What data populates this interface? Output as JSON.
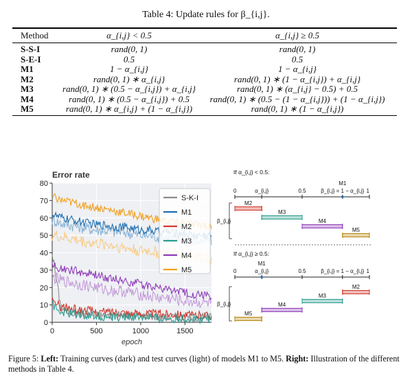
{
  "table": {
    "title": "Table 4: Update rules for β_{i,j}.",
    "headers": [
      "Method",
      "α_{i,j} < 0.5",
      "α_{i,j} ≥ 0.5"
    ],
    "rows": [
      {
        "method": "S-S-I",
        "lt": "rand(0, 1)",
        "ge": "rand(0, 1)"
      },
      {
        "method": "S-E-I",
        "lt": "0.5",
        "ge": "0.5"
      },
      {
        "method": "M1",
        "lt": "1 − α_{i,j}",
        "ge": "1 − α_{i,j}"
      },
      {
        "method": "M2",
        "lt": "rand(0, 1) ∗ α_{i,j}",
        "ge": "rand(0, 1) ∗ (1 − α_{i,j}) + α_{i,j}"
      },
      {
        "method": "M3",
        "lt": "rand(0, 1) ∗ (0.5 − α_{i,j}) + α_{i,j}",
        "ge": "rand(0, 1) ∗ (α_{i,j} − 0.5) + 0.5"
      },
      {
        "method": "M4",
        "lt": "rand(0, 1) ∗ (0.5 − α_{i,j}) + 0.5",
        "ge": "rand(0, 1) ∗ (0.5 − (1 − α_{i,j})) + (1 − α_{i,j})"
      },
      {
        "method": "M5",
        "lt": "rand(0, 1) ∗ α_{i,j} + (1 − α_{i,j})",
        "ge": "rand(0, 1) ∗ (1 − α_{i,j})"
      }
    ]
  },
  "chart_data": {
    "type": "line",
    "title": "Error rate",
    "xlabel": "epoch",
    "ylabel": "",
    "xlim": [
      0,
      1800
    ],
    "ylim": [
      0,
      80
    ],
    "xticks": [
      0,
      500,
      1000,
      1500
    ],
    "yticks": [
      0,
      10,
      20,
      30,
      40,
      50,
      60,
      70,
      80
    ],
    "legend_position": "top-right",
    "x": [
      0,
      100,
      200,
      300,
      400,
      500,
      600,
      700,
      800,
      900,
      1000,
      1100,
      1200,
      1300,
      1400,
      1500,
      1600,
      1700,
      1800
    ],
    "series": [
      {
        "name": "S-K-I",
        "color": "#8c8c8c",
        "values": [
          40,
          8,
          6,
          5,
          5,
          4,
          4,
          4,
          4,
          4,
          4,
          4,
          3,
          3,
          3,
          3,
          3,
          3,
          3
        ]
      },
      {
        "name": "M1",
        "color": "#1f6fb0",
        "values": [
          62,
          60,
          59,
          58,
          57,
          56,
          56,
          55,
          55,
          54,
          53,
          53,
          52,
          52,
          51,
          51,
          50,
          50,
          50
        ],
        "test_values": [
          59,
          57,
          56,
          55,
          54,
          53,
          53,
          52,
          52,
          51,
          50,
          50,
          49,
          49,
          48,
          48,
          47,
          47,
          47
        ]
      },
      {
        "name": "M2",
        "color": "#d1362a",
        "values": [
          12,
          9,
          8,
          7,
          7,
          6,
          6,
          6,
          6,
          5,
          5,
          5,
          5,
          5,
          5,
          4,
          4,
          4,
          4
        ]
      },
      {
        "name": "M3",
        "color": "#2a9d8f",
        "values": [
          10,
          6,
          5,
          5,
          4,
          4,
          3,
          3,
          3,
          3,
          3,
          3,
          2,
          2,
          2,
          2,
          2,
          2,
          2
        ]
      },
      {
        "name": "M4",
        "color": "#8e3ab8",
        "values": [
          33,
          31,
          30,
          29,
          28,
          27,
          26,
          25,
          24,
          23,
          22,
          21,
          20,
          19,
          18,
          17,
          16,
          16,
          15
        ],
        "test_values": [
          26,
          24,
          23,
          22,
          21,
          20,
          19,
          18,
          18,
          17,
          16,
          15,
          14,
          14,
          13,
          12,
          12,
          11,
          11
        ]
      },
      {
        "name": "M5",
        "color": "#f29e1c",
        "values": [
          72,
          70,
          69,
          68,
          67,
          66,
          65,
          64,
          63,
          62,
          61,
          60,
          59,
          58,
          58,
          57,
          56,
          56,
          55
        ],
        "test_values": [
          50,
          49,
          48,
          47,
          46,
          45,
          45,
          44,
          43,
          42,
          41,
          41,
          40,
          40,
          39,
          38,
          38,
          37,
          37
        ]
      }
    ]
  },
  "illustration": {
    "top_label": "If α_{i,j} < 0.5:",
    "bottom_label": "If α_{i,j} ≥ 0.5:",
    "beta_label": "β_{i,j}",
    "top_axis": {
      "ticks": [
        "0",
        "α_{i,j}",
        "0.5",
        "β_{i,j} = 1 − α_{i,j}",
        "1"
      ],
      "marker_label": "M1",
      "alpha": 0.2
    },
    "bottom_axis": {
      "ticks": [
        "0",
        "β_{i,j} = 1 − α_{i,j}",
        "0.5",
        "α_{i,j}",
        "1"
      ],
      "marker_label": "M1",
      "alpha": 0.8
    },
    "top_bars": [
      {
        "name": "M2",
        "color": "#d1362a",
        "from": 0.0,
        "to": 0.2
      },
      {
        "name": "M3",
        "color": "#2a9d8f",
        "from": 0.2,
        "to": 0.5
      },
      {
        "name": "M4",
        "color": "#8e3ab8",
        "from": 0.5,
        "to": 0.8
      },
      {
        "name": "M5",
        "color": "#b8860b",
        "from": 0.8,
        "to": 1.0
      }
    ],
    "bottom_bars": [
      {
        "name": "M2",
        "color": "#d1362a",
        "from": 0.8,
        "to": 1.0
      },
      {
        "name": "M3",
        "color": "#2a9d8f",
        "from": 0.5,
        "to": 0.8
      },
      {
        "name": "M4",
        "color": "#8e3ab8",
        "from": 0.2,
        "to": 0.5
      },
      {
        "name": "M5",
        "color": "#b8860b",
        "from": 0.0,
        "to": 0.2
      }
    ]
  },
  "caption": {
    "prefix": "Figure 5:",
    "left_label": "Left:",
    "left_text": "Training curves (dark) and test curves (light) of models M1 to M5.",
    "right_label": "Right:",
    "right_text": "Illustration of the different methods in Table 4."
  }
}
